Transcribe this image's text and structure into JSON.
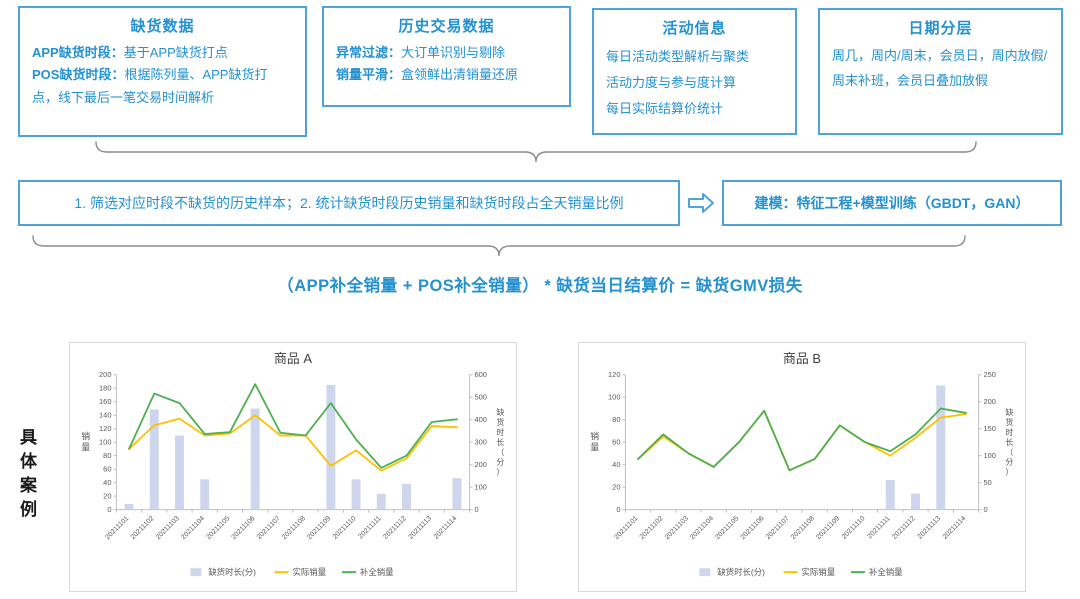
{
  "colors": {
    "accent_blue": "#4FA3DC",
    "text_blue": "#2491D0",
    "brace_gray": "#8C8C8C",
    "bar_fill": "#CDD6EC",
    "line_actual": "#FFC000",
    "line_filled": "#4CAF50"
  },
  "boxes": [
    {
      "title": "缺货数据",
      "lines": [
        {
          "bold": "APP缺货时段：",
          "rest": "基于APP缺货打点"
        },
        {
          "bold": "POS缺货时段：",
          "rest": "根据陈列量、APP缺货打点，线下最后一笔交易时间解析"
        }
      ]
    },
    {
      "title": "历史交易数据",
      "lines": [
        {
          "bold": "异常过滤：",
          "rest": "大订单识别与剔除"
        },
        {
          "bold": "销量平滑：",
          "rest": "盒领鲜出清销量还原"
        }
      ]
    },
    {
      "title": "活动信息",
      "lines": [
        {
          "bold": "",
          "rest": "每日活动类型解析与聚类"
        },
        {
          "bold": "",
          "rest": "活动力度与参与度计算"
        },
        {
          "bold": "",
          "rest": "每日实际结算价统计"
        }
      ]
    },
    {
      "title": "日期分层",
      "lines": [
        {
          "bold": "",
          "rest": "周几，周内/周末，会员日，周内放假/周末补班，会员日叠加放假"
        }
      ]
    }
  ],
  "pipeline": {
    "step_text": "1. 筛选对应时段不缺货的历史样本；2. 统计缺货时段历史销量和缺货时段占全天销量比例",
    "model_bold": "建模：",
    "model_rest": "特征工程+模型训练（GBDT，GAN）"
  },
  "formula": "（APP补全销量 + POS补全销量） * 缺货当日结算价 = 缺货GMV损失",
  "case_label": "具体案例",
  "chart_data": [
    {
      "type": "bar+line",
      "title": "商品 A",
      "categories": [
        "20211101",
        "20211102",
        "20211103",
        "20211104",
        "20211105",
        "20211106",
        "20211107",
        "20211108",
        "20211109",
        "20211110",
        "20211111",
        "20211112",
        "20211113",
        "20211114"
      ],
      "series": [
        {
          "name": "缺货时长(分)",
          "type": "bar",
          "axis": "right",
          "color": "#CDD6EC",
          "values": [
            25,
            445,
            330,
            135,
            0,
            450,
            0,
            0,
            555,
            135,
            70,
            115,
            0,
            140
          ]
        },
        {
          "name": "实际销量",
          "type": "line",
          "axis": "left",
          "color": "#FFC000",
          "values": [
            90,
            125,
            135,
            110,
            113,
            140,
            110,
            110,
            65,
            88,
            58,
            76,
            124,
            122
          ]
        },
        {
          "name": "补全销量",
          "type": "line",
          "axis": "left",
          "color": "#4CAF50",
          "values": [
            90,
            172,
            158,
            112,
            115,
            186,
            114,
            110,
            158,
            104,
            62,
            80,
            130,
            134
          ]
        }
      ],
      "left_axis": {
        "label": "销量",
        "min": 0,
        "max": 200,
        "step": 20
      },
      "right_axis": {
        "label": "缺货时长（分）",
        "min": 0,
        "max": 600,
        "step": 100
      },
      "legend_position": "bottom",
      "grid": false
    },
    {
      "type": "bar+line",
      "title": "商品 B",
      "categories": [
        "20211101",
        "20211102",
        "20211103",
        "20211104",
        "20211105",
        "20211106",
        "20211107",
        "20211108",
        "20211109",
        "20211110",
        "20211111",
        "20211112",
        "20211113",
        "20211114"
      ],
      "series": [
        {
          "name": "缺货时长(分)",
          "type": "bar",
          "axis": "right",
          "color": "#CDD6EC",
          "values": [
            0,
            0,
            0,
            0,
            0,
            0,
            0,
            0,
            0,
            0,
            55,
            30,
            230,
            0
          ]
        },
        {
          "name": "实际销量",
          "type": "line",
          "axis": "left",
          "color": "#FFC000",
          "values": [
            45,
            65,
            50,
            38,
            60,
            88,
            35,
            45,
            75,
            60,
            48,
            64,
            82,
            85
          ]
        },
        {
          "name": "补全销量",
          "type": "line",
          "axis": "left",
          "color": "#4CAF50",
          "values": [
            45,
            67,
            50,
            38,
            60,
            88,
            35,
            45,
            75,
            60,
            52,
            67,
            90,
            86
          ]
        }
      ],
      "left_axis": {
        "label": "销量",
        "min": 0,
        "max": 120,
        "step": 20
      },
      "right_axis": {
        "label": "缺货时长（分）",
        "min": 0,
        "max": 250,
        "step": 50
      },
      "legend_position": "bottom",
      "grid": false
    }
  ]
}
